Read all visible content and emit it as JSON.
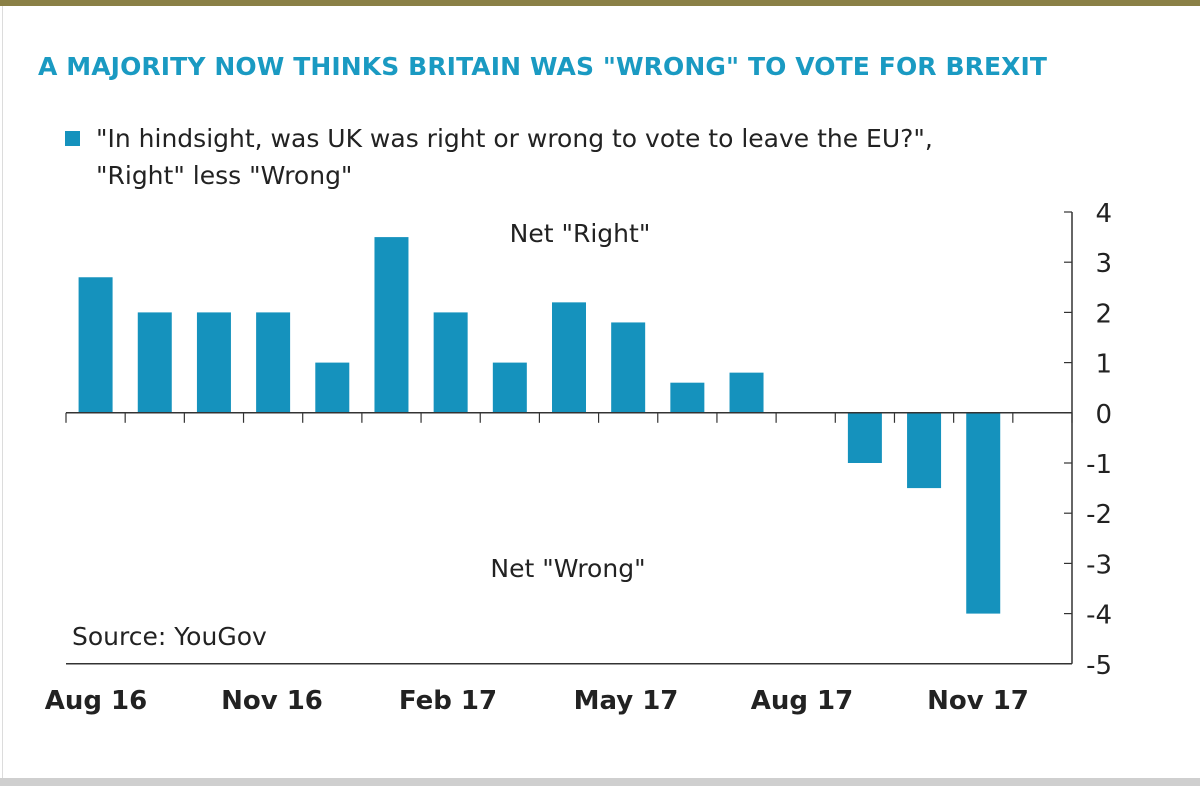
{
  "title": "A MAJORITY NOW THINKS BRITAIN WAS \"WRONG\" TO VOTE FOR BREXIT",
  "legend": {
    "line1": "\"In hindsight, was UK was right or wrong to vote to leave the EU?\",",
    "line2": "\"Right\" less \"Wrong\"",
    "color": "#1592bd"
  },
  "source": "Source: YouGov",
  "chart_data": {
    "type": "bar",
    "series": [
      {
        "values": [
          2.7,
          2,
          2,
          2,
          1,
          3.5,
          2,
          1,
          2.2,
          1.8,
          0.6,
          0.8,
          null,
          -1,
          -1.5,
          -4
        ]
      }
    ],
    "x_tick_labels": [
      "Aug 16",
      "Nov 16",
      "Feb 17",
      "May 17",
      "Aug 17",
      "Nov 17"
    ],
    "y_ticks": [
      "4",
      "3",
      "2",
      "1",
      "0",
      "-1",
      "-2",
      "-3",
      "-4",
      "-5"
    ],
    "ylim": [
      -5,
      4
    ],
    "y_axis_side": "right",
    "annotations": [
      "Net \"Right\"",
      "Net \"Wrong\""
    ],
    "bar_color": "#1592bd"
  }
}
